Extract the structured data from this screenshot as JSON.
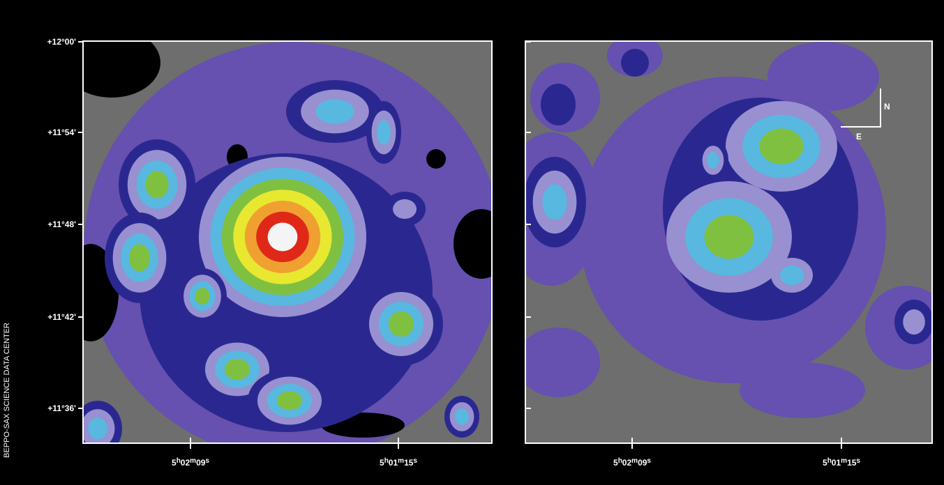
{
  "credit": "BEPPO-SAX SCIENCE DATA CENTER",
  "panels": [
    {
      "y_tick_labels": [
        "+12°00'",
        "+11°54'",
        "+11°48'",
        "+11°42'",
        "+11°36'"
      ],
      "x_tick_labels": [
        [
          "5",
          "h",
          "02",
          "m",
          "09",
          "s"
        ],
        [
          "5",
          "h",
          "01",
          "m",
          "15",
          "s"
        ]
      ]
    },
    {
      "x_tick_labels": [
        [
          "5",
          "h",
          "02",
          "m",
          "09",
          "s"
        ],
        [
          "5",
          "h",
          "01",
          "m",
          "15",
          "s"
        ]
      ],
      "compass": {
        "north": "N",
        "east": "E"
      }
    }
  ]
}
